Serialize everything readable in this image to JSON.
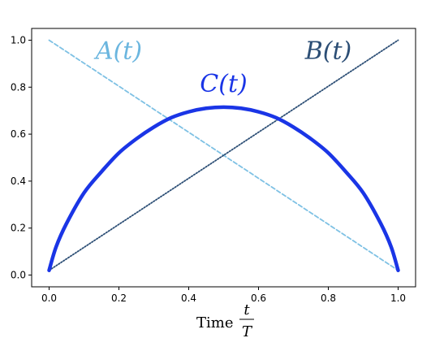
{
  "chart_data": {
    "type": "line",
    "title": "",
    "xlabel": {
      "text": "Time",
      "numerator": "t",
      "denominator": "T"
    },
    "ylabel": "",
    "xlim": [
      -0.05,
      1.05
    ],
    "ylim": [
      -0.05,
      1.05
    ],
    "xticks": [
      "0.0",
      "0.2",
      "0.4",
      "0.6",
      "0.8",
      "1.0"
    ],
    "yticks": [
      "0.0",
      "0.2",
      "0.4",
      "0.6",
      "0.8",
      "1.0"
    ],
    "grid": false,
    "series": [
      {
        "name": "A(t)",
        "color": "#7ec1e4",
        "style": "dashed",
        "x": [
          0.0,
          1.0
        ],
        "y": [
          1.0,
          0.02
        ]
      },
      {
        "name": "B(t)",
        "color": "#2c4e75",
        "style": "dotted",
        "x": [
          0.0,
          1.0
        ],
        "y": [
          0.02,
          1.0
        ]
      },
      {
        "name": "C(t)",
        "color": "#1a35e6",
        "style": "solid",
        "x": [
          0.0,
          0.02,
          0.05,
          0.1,
          0.15,
          0.2,
          0.25,
          0.3,
          0.35,
          0.4,
          0.45,
          0.5,
          0.55,
          0.6,
          0.65,
          0.7,
          0.75,
          0.8,
          0.85,
          0.9,
          0.95,
          0.98,
          1.0
        ],
        "y": [
          0.02,
          0.12,
          0.22,
          0.35,
          0.44,
          0.52,
          0.58,
          0.63,
          0.67,
          0.695,
          0.71,
          0.715,
          0.71,
          0.695,
          0.67,
          0.63,
          0.58,
          0.52,
          0.44,
          0.35,
          0.22,
          0.12,
          0.02
        ]
      }
    ],
    "annotations": [
      {
        "text": "A(t)",
        "x": 0.2,
        "y": 0.92,
        "color": "#6bb6df"
      },
      {
        "text": "B(t)",
        "x": 0.8,
        "y": 0.92,
        "color": "#2c4e75"
      },
      {
        "text": "C(t)",
        "x": 0.5,
        "y": 0.78,
        "color": "#1a35e6"
      }
    ]
  }
}
